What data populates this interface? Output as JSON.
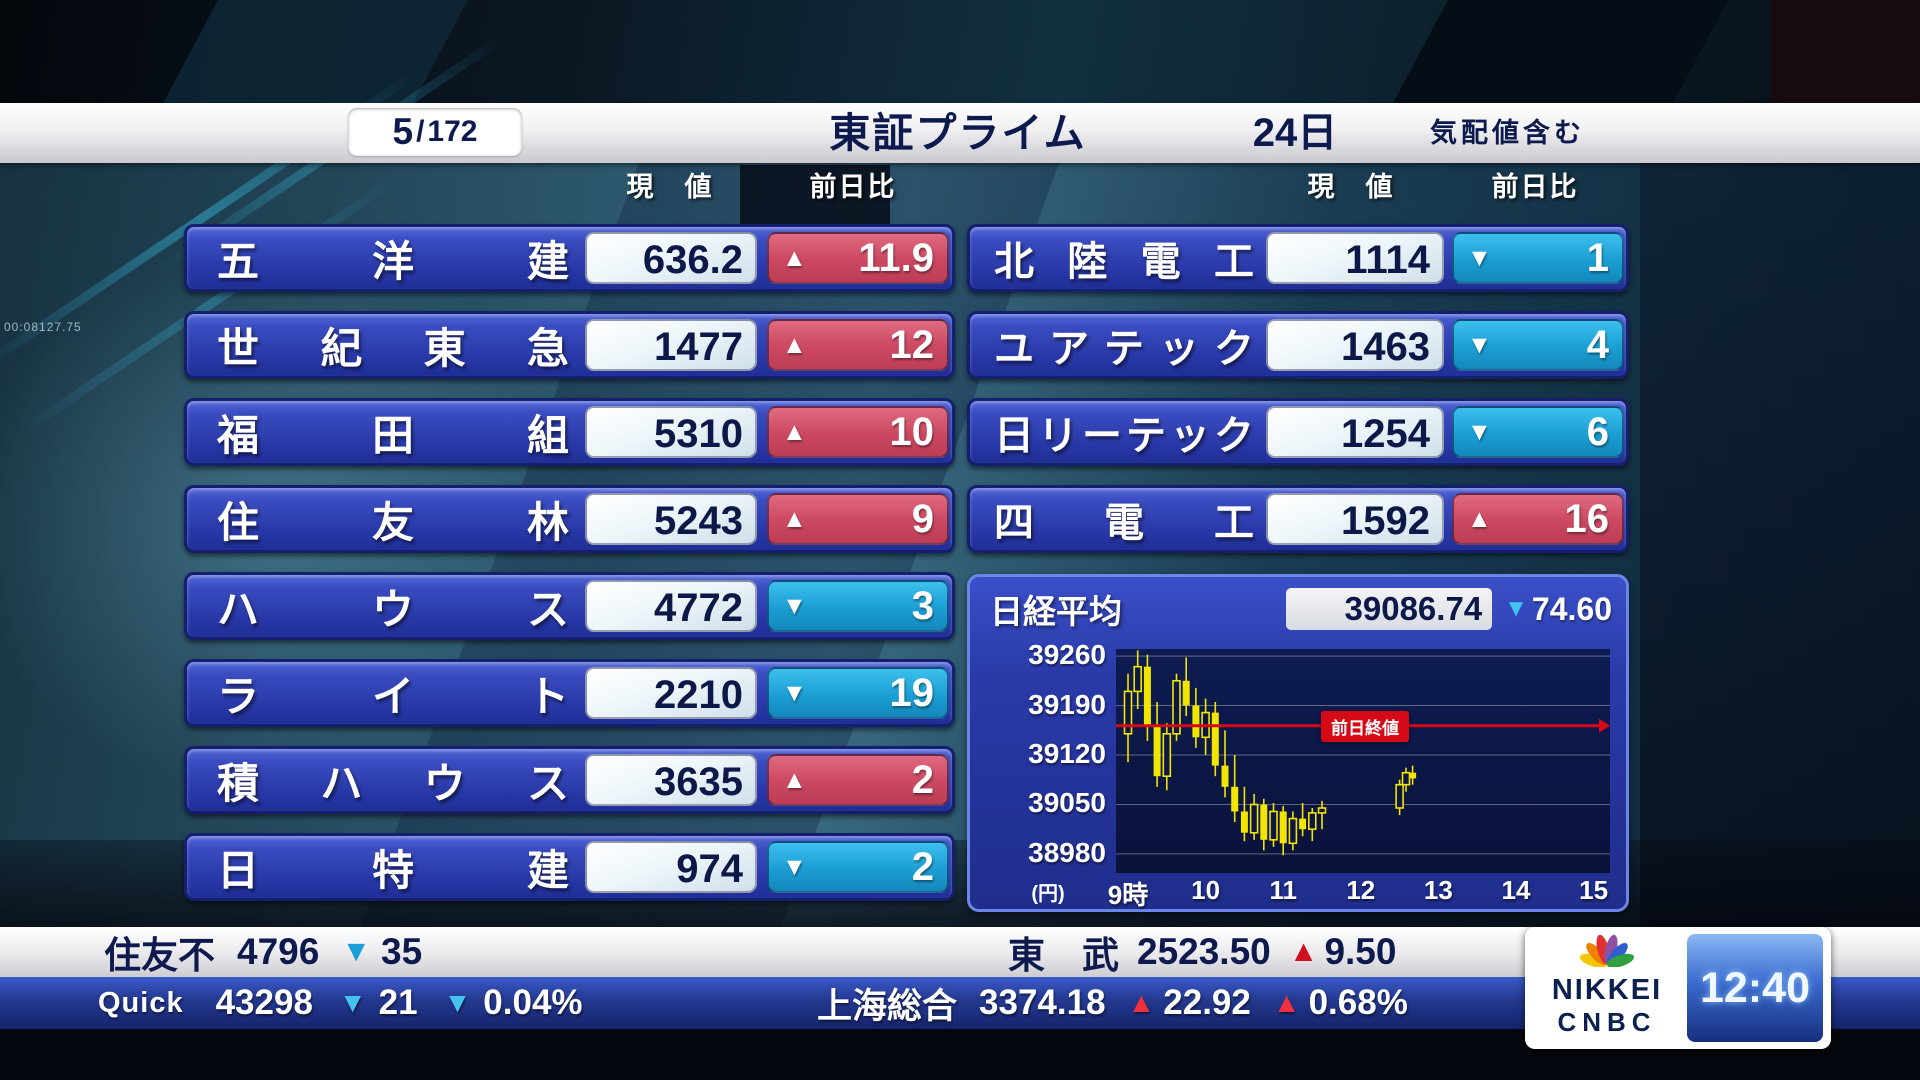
{
  "header": {
    "page_current": "5",
    "page_sep": "/",
    "page_total": "172",
    "market_title": "東証プライム",
    "date": "24日",
    "note": "気配値含む"
  },
  "column_headers": {
    "price": "現　値",
    "change": "前日比"
  },
  "icons": {
    "up": "▲",
    "down": "▼"
  },
  "stocks_left": [
    {
      "name": "五洋建",
      "price": "636.2",
      "dir": "up",
      "change": "11.9"
    },
    {
      "name": "世紀東急",
      "price": "1477",
      "dir": "up",
      "change": "12"
    },
    {
      "name": "福田組",
      "price": "5310",
      "dir": "up",
      "change": "10"
    },
    {
      "name": "住友林",
      "price": "5243",
      "dir": "up",
      "change": "9"
    },
    {
      "name": "ハウス",
      "price": "4772",
      "dir": "down",
      "change": "3"
    },
    {
      "name": "ライト",
      "price": "2210",
      "dir": "down",
      "change": "19"
    },
    {
      "name": "積ハウス",
      "price": "3635",
      "dir": "up",
      "change": "2"
    },
    {
      "name": "日特建",
      "price": "974",
      "dir": "down",
      "change": "2"
    }
  ],
  "stocks_right": [
    {
      "name": "北陸電工",
      "price": "1114",
      "dir": "down",
      "change": "1"
    },
    {
      "name": "ユアテック",
      "price": "1463",
      "dir": "down",
      "change": "4"
    },
    {
      "name": "日リーテック",
      "price": "1254",
      "dir": "down",
      "change": "6"
    },
    {
      "name": "四電工",
      "price": "1592",
      "dir": "up",
      "change": "16"
    }
  ],
  "nikkei_panel": {
    "label": "日経平均",
    "value": "39086.74",
    "change_dir": "down",
    "change": "74.60",
    "prev_close_label": "前日終値",
    "unit": "(円)"
  },
  "chart_data": {
    "type": "candlestick",
    "title": "日経平均",
    "ylabel_unit": "円",
    "y_ticks": [
      39260,
      39190,
      39120,
      39050,
      38980
    ],
    "x_ticks": [
      "9時",
      "10",
      "11",
      "12",
      "13",
      "14",
      "15"
    ],
    "x_hours": [
      9,
      10,
      11,
      12,
      13,
      14,
      15
    ],
    "xlim_hours": [
      9,
      15
    ],
    "ylim": [
      38953,
      39270
    ],
    "grid": true,
    "prev_close": 39161.34,
    "current": 39086.74,
    "change": -74.6,
    "candles": [
      [
        9.0,
        39150,
        39235,
        39110,
        39210
      ],
      [
        9.125,
        39210,
        39268,
        39185,
        39245
      ],
      [
        9.25,
        39245,
        39262,
        39140,
        39160
      ],
      [
        9.375,
        39160,
        39195,
        39075,
        39090
      ],
      [
        9.5,
        39090,
        39165,
        39070,
        39150
      ],
      [
        9.625,
        39150,
        39235,
        39140,
        39225
      ],
      [
        9.75,
        39225,
        39258,
        39175,
        39190
      ],
      [
        9.875,
        39190,
        39215,
        39130,
        39145
      ],
      [
        10.0,
        39145,
        39200,
        39120,
        39180
      ],
      [
        10.125,
        39180,
        39195,
        39090,
        39105
      ],
      [
        10.25,
        39105,
        39155,
        39060,
        39075
      ],
      [
        10.375,
        39075,
        39120,
        39025,
        39040
      ],
      [
        10.5,
        39040,
        39075,
        38998,
        39010
      ],
      [
        10.625,
        39010,
        39065,
        39000,
        39050
      ],
      [
        10.75,
        39050,
        39058,
        38985,
        39000
      ],
      [
        10.875,
        39000,
        39052,
        38990,
        39040
      ],
      [
        11.0,
        39040,
        39048,
        38978,
        38995
      ],
      [
        11.125,
        38995,
        39040,
        38985,
        39030
      ],
      [
        11.25,
        39030,
        39052,
        39005,
        39015
      ],
      [
        11.375,
        39015,
        39045,
        38998,
        39038
      ],
      [
        11.5,
        39038,
        39055,
        39015,
        39045
      ],
      [
        12.5,
        39045,
        39085,
        39035,
        39078
      ],
      [
        12.583,
        39078,
        39102,
        39068,
        39095
      ],
      [
        12.667,
        39095,
        39105,
        39078,
        39087
      ]
    ]
  },
  "ticker_bar": {
    "left": {
      "name": "住友不",
      "price": "4796",
      "dir": "down",
      "change": "35"
    },
    "right": {
      "name": "東　武",
      "price": "2523.50",
      "dir": "up",
      "change": "9.50"
    }
  },
  "quick_bar": {
    "source_label": "Quick",
    "value": "43298",
    "dir": "down",
    "change": "21",
    "change_pct": "0.04%",
    "index_name": "上海総合",
    "index_value": "3374.18",
    "index_dir": "up",
    "index_change": "22.92",
    "index_change_pct": "0.68%"
  },
  "logo_box": {
    "brand_top": "NIKKEI",
    "brand_bottom": "CNBC",
    "clock": "12:40"
  },
  "backdrop": {
    "side_ticker_text": "00:08127.75"
  },
  "colors": {
    "up_red": "#cb4860",
    "down_teal": "#1b9ed2",
    "row_blue": "#2f41b2",
    "value_navy": "#0c1848",
    "chart_bg": "#0a123a",
    "candle_yellow": "#f2e600",
    "prev_close_red": "#d50a16",
    "bar_up_red": "#f03040",
    "bar_down_teal": "#45c2f0"
  }
}
